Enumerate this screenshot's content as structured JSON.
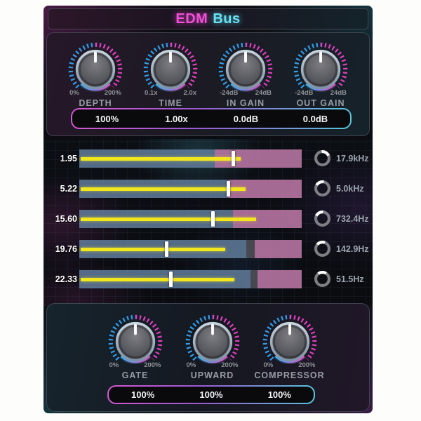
{
  "title": {
    "edm": "EDM",
    "bus": "Bus"
  },
  "top_knobs": [
    {
      "name": "DEPTH",
      "min": "0%",
      "max": "200%",
      "value": "100%"
    },
    {
      "name": "TIME",
      "min": "0.1x",
      "max": "2.0x",
      "value": "1.00x"
    },
    {
      "name": "IN GAIN",
      "min": "-24dB",
      "max": "24dB",
      "value": "0.0dB"
    },
    {
      "name": "OUT GAIN",
      "min": "-24dB",
      "max": "24dB",
      "value": "0.0dB"
    }
  ],
  "bands": [
    {
      "label": "1.95",
      "freq": "17.9kHz",
      "blue_pct": 61,
      "gray_pct": 0,
      "yellow_pct": 72,
      "handle_pct": 69,
      "ring_deg": -95
    },
    {
      "label": "5.22",
      "freq": "5.0kHz",
      "blue_pct": 67,
      "gray_pct": 0,
      "yellow_pct": 74,
      "handle_pct": 67,
      "ring_deg": -150
    },
    {
      "label": "15.60",
      "freq": "732.4Hz",
      "blue_pct": 69,
      "gray_pct": 0,
      "yellow_pct": 79,
      "handle_pct": 60,
      "ring_deg": -155
    },
    {
      "label": "19.76",
      "freq": "142.9Hz",
      "blue_pct": 75,
      "gray_pct": 4,
      "yellow_pct": 65,
      "handle_pct": 39,
      "ring_deg": -140
    },
    {
      "label": "22.33",
      "freq": "51.5Hz",
      "blue_pct": 77,
      "gray_pct": 3,
      "yellow_pct": 69,
      "handle_pct": 41,
      "ring_deg": -128
    }
  ],
  "bottom_knobs": [
    {
      "name": "GATE",
      "min": "0%",
      "max": "200%",
      "value": "100%"
    },
    {
      "name": "UPWARD",
      "min": "0%",
      "max": "200%",
      "value": "100%"
    },
    {
      "name": "COMPRESSOR",
      "min": "0%",
      "max": "200%",
      "value": "100%"
    }
  ],
  "colors": {
    "accent_magenta": "#f24fd8",
    "accent_cyan": "#66e2f4",
    "tick_blue": "#2f9de8",
    "tick_pink": "#e03fc0",
    "slider_yellow": "#f2e71d",
    "bar_blue": "#6480a0",
    "bar_pink": "#c17aaa"
  }
}
